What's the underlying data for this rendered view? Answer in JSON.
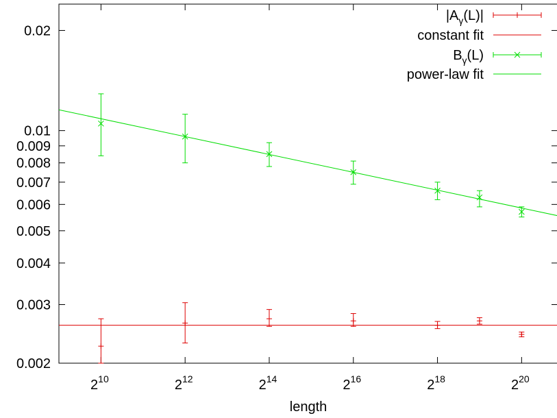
{
  "chart_data": {
    "type": "scatter",
    "xlabel": "length",
    "ylabel": "",
    "x_scale": "log2",
    "y_scale": "log",
    "xlim": [
      512,
      1900000
    ],
    "ylim": [
      0.002,
      0.024
    ],
    "grid": false,
    "legend_position": "top-right",
    "x_ticks": [
      {
        "base": "2",
        "exp": "10",
        "value": 1024
      },
      {
        "base": "2",
        "exp": "12",
        "value": 4096
      },
      {
        "base": "2",
        "exp": "14",
        "value": 16384
      },
      {
        "base": "2",
        "exp": "16",
        "value": 65536
      },
      {
        "base": "2",
        "exp": "18",
        "value": 262144
      },
      {
        "base": "2",
        "exp": "20",
        "value": 1048576
      }
    ],
    "y_ticks": [
      {
        "label": "0.002",
        "value": 0.002
      },
      {
        "label": "0.003",
        "value": 0.003
      },
      {
        "label": "0.004",
        "value": 0.004
      },
      {
        "label": "0.005",
        "value": 0.005
      },
      {
        "label": "0.006",
        "value": 0.006
      },
      {
        "label": "0.007",
        "value": 0.007
      },
      {
        "label": "0.008",
        "value": 0.008
      },
      {
        "label": "0.009",
        "value": 0.009
      },
      {
        "label": "0.01",
        "value": 0.01
      },
      {
        "label": "0.02",
        "value": 0.02
      }
    ],
    "series": [
      {
        "name": "|A",
        "name_sub": "γ",
        "name_tail": "(L)|",
        "color": "#dd0000",
        "marker": "plus",
        "points": [
          {
            "x": 1024,
            "y": 0.00225,
            "ylo": 0.002,
            "yhi": 0.00272
          },
          {
            "x": 4096,
            "y": 0.00264,
            "ylo": 0.0023,
            "yhi": 0.00304
          },
          {
            "x": 16384,
            "y": 0.00272,
            "ylo": 0.00258,
            "yhi": 0.0029
          },
          {
            "x": 65536,
            "y": 0.00268,
            "ylo": 0.00258,
            "yhi": 0.00282
          },
          {
            "x": 262144,
            "y": 0.0026,
            "ylo": 0.00254,
            "yhi": 0.00267
          },
          {
            "x": 524288,
            "y": 0.00268,
            "ylo": 0.00262,
            "yhi": 0.00274
          },
          {
            "x": 1048576,
            "y": 0.00244,
            "ylo": 0.0024,
            "yhi": 0.00248
          }
        ]
      },
      {
        "name": "B",
        "name_sub": "γ",
        "name_tail": "(L)",
        "color": "#00dd00",
        "marker": "cross",
        "points": [
          {
            "x": 1024,
            "y": 0.0105,
            "ylo": 0.0084,
            "yhi": 0.0129
          },
          {
            "x": 4096,
            "y": 0.0096,
            "ylo": 0.008,
            "yhi": 0.0112
          },
          {
            "x": 16384,
            "y": 0.0085,
            "ylo": 0.0078,
            "yhi": 0.0092
          },
          {
            "x": 65536,
            "y": 0.0075,
            "ylo": 0.0069,
            "yhi": 0.0081
          },
          {
            "x": 262144,
            "y": 0.0066,
            "ylo": 0.0062,
            "yhi": 0.007
          },
          {
            "x": 524288,
            "y": 0.0063,
            "ylo": 0.0059,
            "yhi": 0.0066
          },
          {
            "x": 1048576,
            "y": 0.0057,
            "ylo": 0.0055,
            "yhi": 0.0059
          }
        ]
      }
    ],
    "fits": [
      {
        "name": "constant fit",
        "color": "#dd0000",
        "kind": "constant",
        "value": 0.0026
      },
      {
        "name": "power-law fit",
        "color": "#00dd00",
        "kind": "power",
        "points": [
          [
            512,
            0.01155
          ],
          [
            1900000,
            0.00555
          ]
        ]
      }
    ],
    "legend": [
      {
        "kind": "errorbar",
        "series": 0
      },
      {
        "kind": "line",
        "fit": 0
      },
      {
        "kind": "errorbar",
        "series": 1
      },
      {
        "kind": "line",
        "fit": 1
      }
    ]
  }
}
